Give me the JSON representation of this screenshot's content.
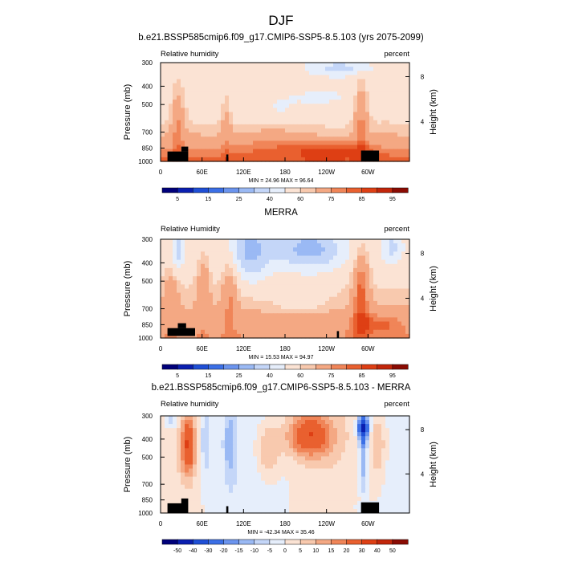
{
  "page_title": "DJF",
  "colors": {
    "negative_scale": [
      "#00007a",
      "#0a1fb0",
      "#1f4fd6",
      "#3b6fe6",
      "#6b94ee",
      "#9ab9f4",
      "#c4d6f8",
      "#e6eefb"
    ],
    "positive_scale": [
      "#fbe3d4",
      "#f8c9ae",
      "#f4a883",
      "#f08558",
      "#e9602f",
      "#de3f14",
      "#c2260a",
      "#8a0b03"
    ],
    "land": "#000000"
  },
  "chart_data": [
    {
      "type": "heatmap",
      "title": "b.e21.BSSP585cmip6.f09_g17.CMIP6-SSP5-8.5.103 (yrs 2075-2099)",
      "subtitle_left": "Relative humidity",
      "subtitle_right": "percent",
      "xlabel": "",
      "ylabel": "Pressure (mb)",
      "ylabel_right": "Height (km)",
      "x_ticks": [
        "0",
        "60E",
        "120E",
        "180",
        "120W",
        "60W"
      ],
      "x_tick_lon": [
        0,
        60,
        120,
        180,
        240,
        300
      ],
      "x_range": [
        0,
        360
      ],
      "y_ticks": [
        300,
        400,
        500,
        700,
        850,
        1000
      ],
      "y_range": [
        300,
        1000
      ],
      "y_right_ticks": [
        "8",
        "4"
      ],
      "y_right_tick_pressure": [
        356,
        616
      ],
      "min_max": "MIN = 24.96  MAX = 96.64",
      "colorbar_levels": [
        5,
        10,
        15,
        20,
        25,
        30,
        40,
        50,
        60,
        65,
        75,
        80,
        85,
        90,
        95
      ],
      "colorbar_labels": [
        "5",
        "15",
        "25",
        "40",
        "60",
        "75",
        "85",
        "95"
      ],
      "value_range": [
        0,
        100
      ],
      "mode": "model"
    },
    {
      "type": "heatmap",
      "title": "MERRA",
      "subtitle_left": "Relative Humidity",
      "subtitle_right": "percent",
      "xlabel": "",
      "ylabel": "Pressure (mb)",
      "ylabel_right": "Height (km)",
      "x_ticks": [
        "0",
        "60E",
        "120E",
        "180",
        "120W",
        "60W"
      ],
      "x_tick_lon": [
        0,
        60,
        120,
        180,
        240,
        300
      ],
      "x_range": [
        0,
        360
      ],
      "y_ticks": [
        300,
        400,
        500,
        700,
        850,
        1000
      ],
      "y_range": [
        300,
        1000
      ],
      "y_right_ticks": [
        "8",
        "4"
      ],
      "y_right_tick_pressure": [
        356,
        616
      ],
      "min_max": "MIN = 15.53  MAX = 94.97",
      "colorbar_levels": [
        5,
        10,
        15,
        20,
        25,
        30,
        40,
        50,
        60,
        65,
        75,
        80,
        85,
        90,
        95
      ],
      "colorbar_labels": [
        "5",
        "15",
        "25",
        "40",
        "60",
        "75",
        "85",
        "95"
      ],
      "value_range": [
        0,
        100
      ],
      "mode": "obs"
    },
    {
      "type": "heatmap",
      "title": "b.e21.BSSP585cmip6.f09_g17.CMIP6-SSP5-8.5.103 - MERRA",
      "subtitle_left": "Relative humidity",
      "subtitle_right": "percent",
      "xlabel": "",
      "ylabel": "Pressure (mb)",
      "ylabel_right": "Height (km)",
      "x_ticks": [
        "0",
        "60E",
        "120E",
        "180",
        "120W",
        "60W"
      ],
      "x_tick_lon": [
        0,
        60,
        120,
        180,
        240,
        300
      ],
      "x_range": [
        0,
        360
      ],
      "y_ticks": [
        300,
        400,
        500,
        700,
        850,
        1000
      ],
      "y_range": [
        300,
        1000
      ],
      "y_right_ticks": [
        "8",
        "4"
      ],
      "y_right_tick_pressure": [
        356,
        616
      ],
      "min_max": "MIN = -42.34  MAX = 35.46",
      "colorbar_levels": [
        -50,
        -40,
        -30,
        -20,
        -15,
        -10,
        -5,
        0,
        5,
        10,
        15,
        20,
        30,
        40,
        50
      ],
      "colorbar_labels": [
        "-50",
        "-40",
        "-30",
        "-20",
        "-15",
        "-10",
        "-5",
        "0",
        "5",
        "10",
        "15",
        "20",
        "30",
        "40",
        "50"
      ],
      "value_range": [
        -55,
        55
      ],
      "mode": "diff"
    }
  ]
}
